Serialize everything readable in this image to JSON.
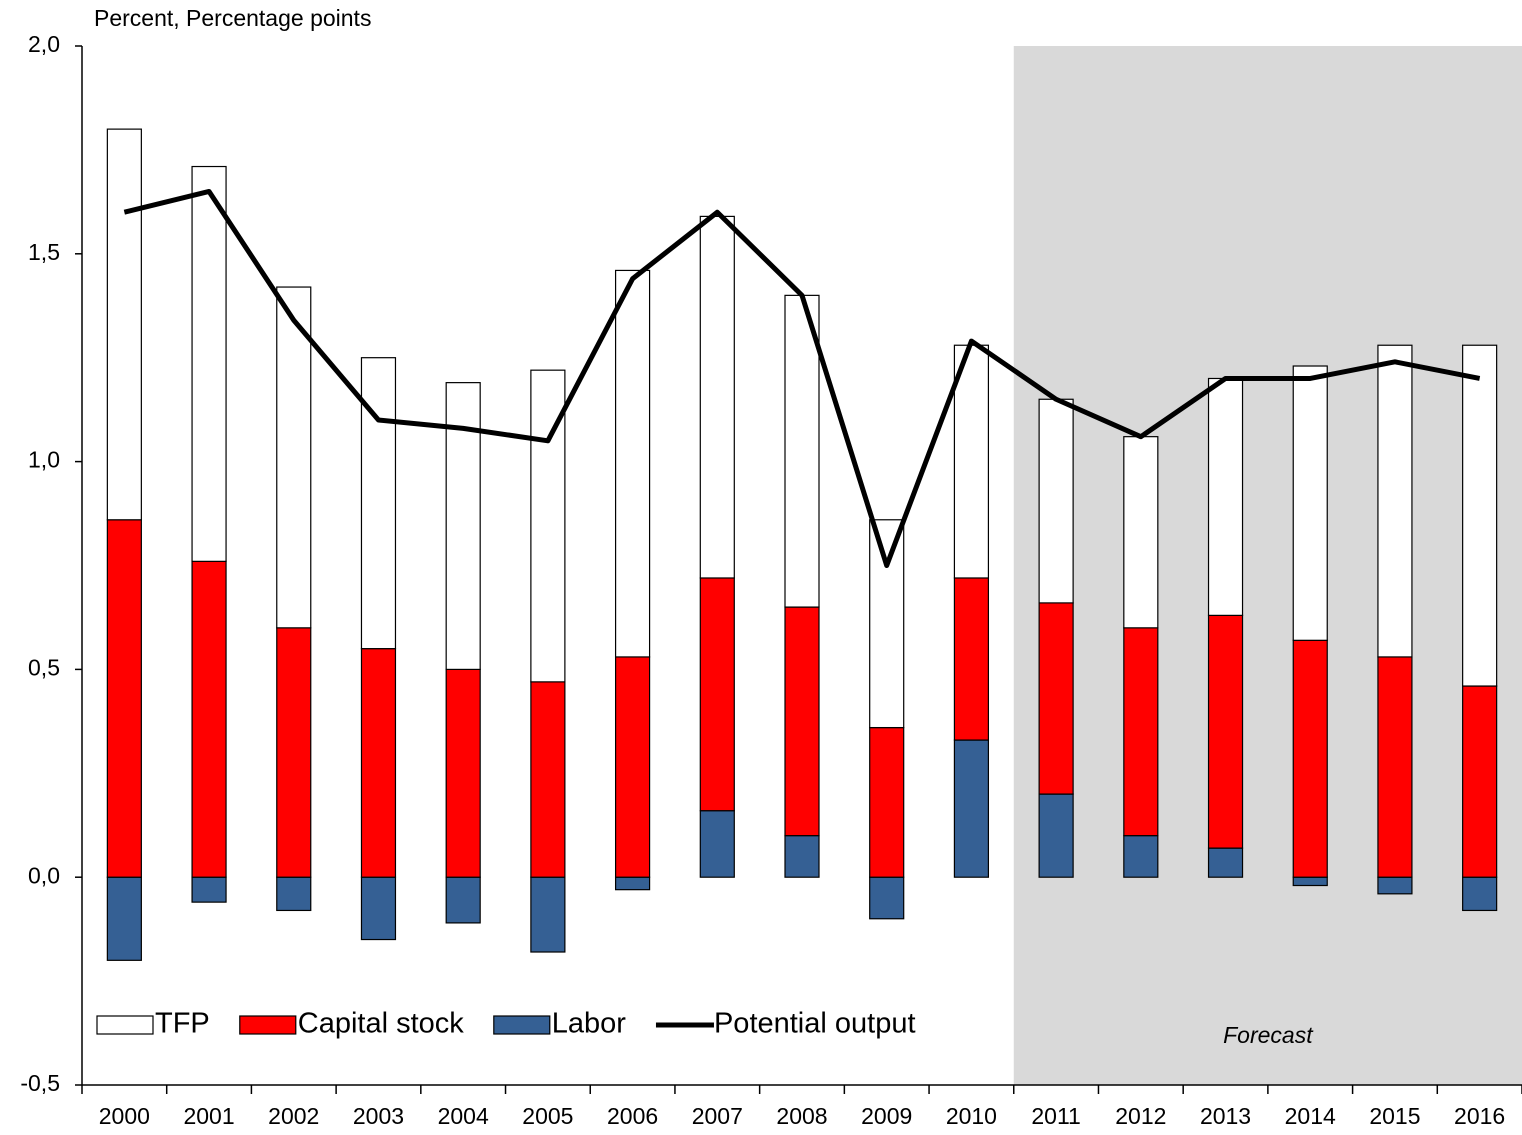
{
  "chart_data": {
    "type": "bar",
    "stacked": true,
    "title": "Percent, Percentage points",
    "categories": [
      "2000",
      "2001",
      "2002",
      "2003",
      "2004",
      "2005",
      "2006",
      "2007",
      "2008",
      "2009",
      "2010",
      "2011",
      "2012",
      "2013",
      "2014",
      "2015",
      "2016"
    ],
    "series": [
      {
        "name": "TFP",
        "type": "bar",
        "color": "#ffffff",
        "values": [
          0.94,
          0.95,
          0.82,
          0.7,
          0.69,
          0.75,
          0.93,
          0.87,
          0.75,
          0.5,
          0.56,
          0.49,
          0.46,
          0.57,
          0.66,
          0.75,
          0.82
        ]
      },
      {
        "name": "Capital stock",
        "type": "bar",
        "color": "#ff0000",
        "values": [
          0.86,
          0.76,
          0.6,
          0.55,
          0.5,
          0.47,
          0.53,
          0.56,
          0.55,
          0.36,
          0.39,
          0.46,
          0.5,
          0.56,
          0.57,
          0.53,
          0.46
        ]
      },
      {
        "name": "Labor",
        "type": "bar",
        "color": "#356094",
        "values": [
          -0.2,
          -0.06,
          -0.08,
          -0.15,
          -0.11,
          -0.18,
          -0.03,
          0.16,
          0.1,
          -0.1,
          0.33,
          0.2,
          0.1,
          0.07,
          -0.02,
          -0.04,
          -0.08
        ]
      },
      {
        "name": "Potential output",
        "type": "line",
        "color": "#000000",
        "values": [
          1.6,
          1.65,
          1.34,
          1.1,
          1.08,
          1.05,
          1.44,
          1.6,
          1.4,
          0.75,
          1.29,
          1.15,
          1.06,
          1.2,
          1.2,
          1.24,
          1.2
        ]
      }
    ],
    "ylim": [
      -0.5,
      2.0
    ],
    "yticks": [
      {
        "value": -0.5,
        "label": "-0,5"
      },
      {
        "value": 0,
        "label": "0,0"
      },
      {
        "value": 0.5,
        "label": "0,5"
      },
      {
        "value": 1.0,
        "label": "1,0"
      },
      {
        "value": 1.5,
        "label": "1,5"
      },
      {
        "value": 2.0,
        "label": "2,0"
      }
    ],
    "shaded_region": {
      "label": "Forecast",
      "start": "2011",
      "end": "2016",
      "color": "#d9d9d9"
    },
    "legend": "lower left",
    "grid": false
  }
}
